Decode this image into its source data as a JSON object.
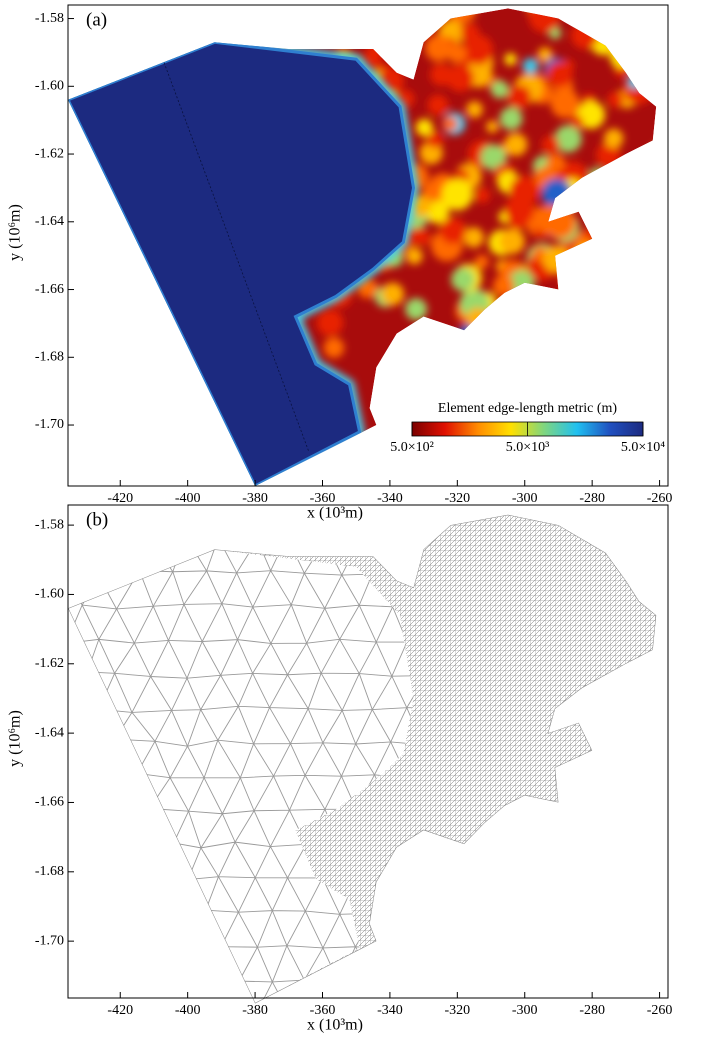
{
  "chart_data": [
    {
      "type": "field",
      "panel_label": "(a)",
      "xlabel": "x (10³m)",
      "ylabel": "y (10⁶m)",
      "xlim": [
        -435.5,
        -257.5
      ],
      "ylim": [
        -1.718,
        -1.576
      ],
      "xticks": [
        -420,
        -400,
        -380,
        -360,
        -340,
        -320,
        -300,
        -280,
        -260
      ],
      "yticks": [
        -1.58,
        {
          "value": -1.6,
          "label": "-1.60"
        },
        -1.62,
        -1.64,
        -1.66,
        -1.68,
        {
          "value": -1.7,
          "label": "-1.70"
        }
      ],
      "colorbar": {
        "title": "Element edge-length metric (m)",
        "log": true,
        "clim": [
          500,
          50000
        ],
        "ticks": [
          {
            "value": 500,
            "label": "5.0×10²"
          },
          {
            "value": 5000,
            "label": "5.0×10³"
          },
          {
            "value": 50000,
            "label": "5.0×10⁴"
          }
        ],
        "colors": [
          "#7a0000",
          "#e01000",
          "#ff8c00",
          "#ffe000",
          "#7fd67f",
          "#20c0f0",
          "#2050c0",
          "#1c2a80"
        ]
      }
    },
    {
      "type": "mesh",
      "panel_label": "(b)",
      "xlabel": "x (10³m)",
      "ylabel": "y (10⁶m)",
      "xlim": [
        -435.5,
        -257.5
      ],
      "ylim": [
        -1.7164,
        -1.5742
      ],
      "xticks": [
        -420,
        -400,
        -380,
        -360,
        -340,
        -320,
        -300,
        -280,
        -260
      ],
      "yticks": [
        -1.58,
        {
          "value": -1.6,
          "label": "-1.60"
        },
        -1.62,
        -1.64,
        -1.66,
        -1.68,
        {
          "value": -1.7,
          "label": "-1.70"
        }
      ]
    }
  ]
}
